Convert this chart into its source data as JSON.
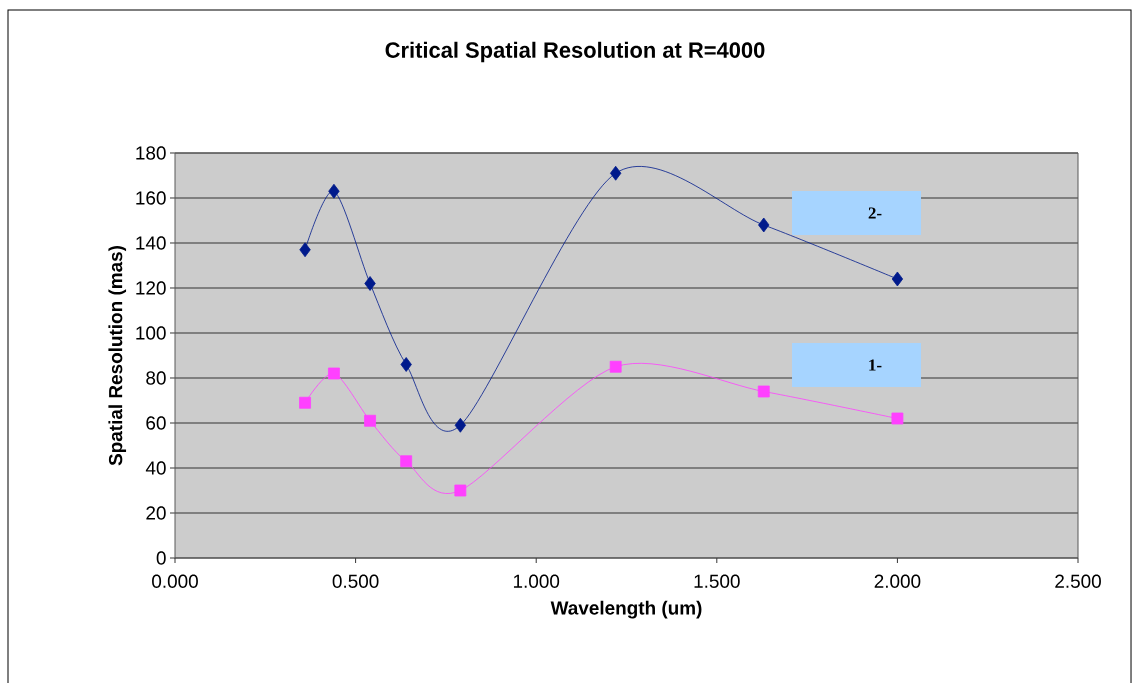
{
  "chart_data": {
    "type": "line",
    "title": "Critical Spatial Resolution at R=4000",
    "xlabel": "Wavelength (um)",
    "ylabel": "Spatial Resolution (mas)",
    "series": [
      {
        "color": "#001a8c",
        "marker": "diamond",
        "x": [
          0.36,
          0.44,
          0.54,
          0.64,
          0.79,
          1.22,
          1.63,
          2.0
        ],
        "values": [
          137,
          163,
          122,
          86,
          59,
          171,
          148,
          124
        ]
      },
      {
        "color": "#ff40ff",
        "marker": "square",
        "x": [
          0.36,
          0.44,
          0.54,
          0.64,
          0.79,
          1.22,
          1.63,
          2.0
        ],
        "values": [
          69,
          82,
          61,
          43,
          30,
          85,
          74,
          62
        ]
      }
    ],
    "xlim": [
      0,
      2.5
    ],
    "ylim": [
      0,
      180
    ],
    "xticks": [
      {
        "value": 0,
        "label": "0.000"
      },
      {
        "value": 0.5,
        "label": "0.500"
      },
      {
        "value": 1.0,
        "label": "1.000"
      },
      {
        "value": 1.5,
        "label": "1.500"
      },
      {
        "value": 2.0,
        "label": "2.000"
      },
      {
        "value": 2.5,
        "label": "2.500"
      }
    ],
    "yticks": [
      0,
      20,
      40,
      60,
      80,
      100,
      120,
      140,
      160,
      180
    ],
    "grid": "y",
    "annotations": [
      "2-",
      "1-"
    ]
  }
}
